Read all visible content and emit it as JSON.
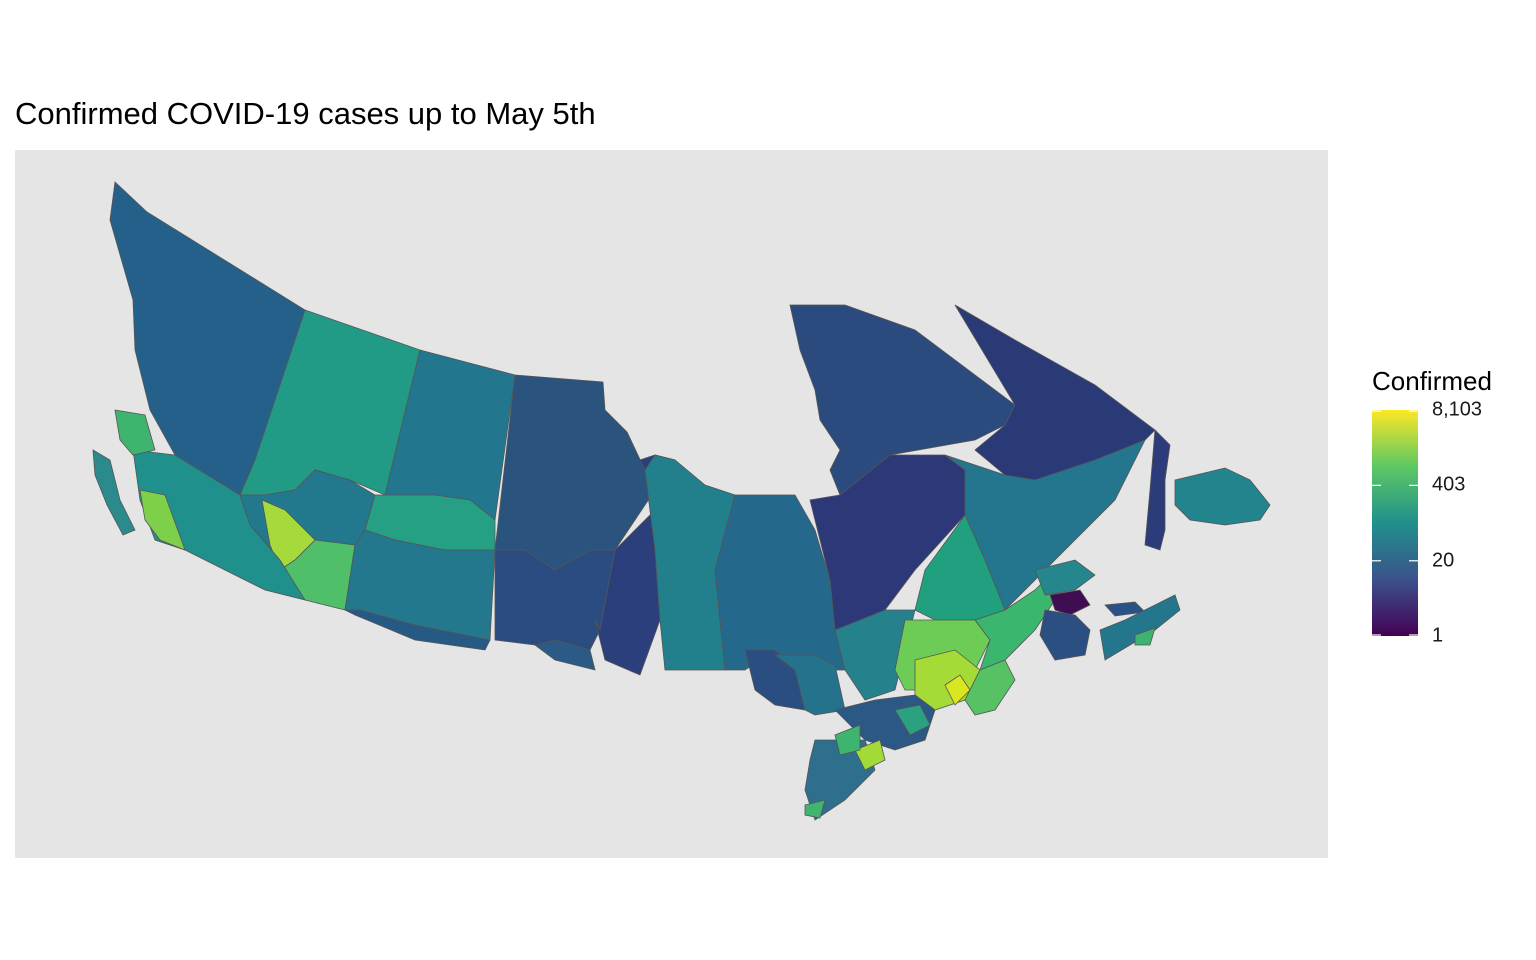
{
  "title": "Confirmed COVID-19 cases up to May 5th",
  "legend": {
    "title": "Confirmed",
    "scale": "log",
    "palette": [
      "#440154",
      "#3b528b",
      "#21908c",
      "#5dc863",
      "#fde725"
    ],
    "range": [
      1,
      8103
    ],
    "ticks": [
      {
        "value": 1,
        "label": "1"
      },
      {
        "value": 20,
        "label": "20"
      },
      {
        "value": 403,
        "label": "403"
      },
      {
        "value": 8103,
        "label": "8,103"
      }
    ]
  },
  "map": {
    "region": "Canada",
    "panel_background": "#e5e5e5",
    "border_color": "#555555"
  }
}
